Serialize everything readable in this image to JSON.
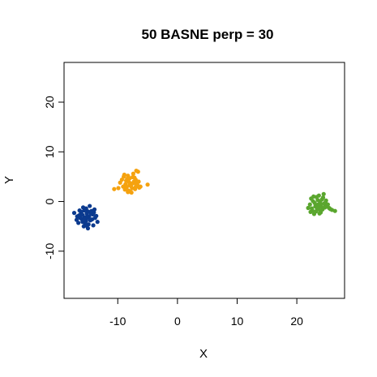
{
  "chart_data": {
    "type": "scatter",
    "title": "50 BASNE perp = 30",
    "xlabel": "X",
    "ylabel": "Y",
    "xlim": [
      -19,
      28
    ],
    "ylim": [
      -19.5,
      28
    ],
    "xticks": [
      -10,
      0,
      10,
      20
    ],
    "yticks": [
      -10,
      0,
      10,
      20
    ],
    "xtick_labels": [
      "-10",
      "0",
      "10",
      "20"
    ],
    "ytick_labels": [
      "-10",
      "0",
      "10",
      "20"
    ],
    "grid": false,
    "legend": "none",
    "series": [
      {
        "color": "#0b3a8f",
        "points": [
          [
            -16.2,
            -2.5
          ],
          [
            -15.6,
            -3.2
          ],
          [
            -15.0,
            -2.0
          ],
          [
            -14.6,
            -3.8
          ],
          [
            -15.9,
            -4.1
          ],
          [
            -14.2,
            -2.6
          ],
          [
            -16.8,
            -3.0
          ],
          [
            -15.3,
            -1.4
          ],
          [
            -13.8,
            -3.3
          ],
          [
            -14.9,
            -4.6
          ],
          [
            -16.4,
            -1.8
          ],
          [
            -15.1,
            -2.9
          ],
          [
            -17.3,
            -2.3
          ],
          [
            -13.4,
            -4.1
          ],
          [
            -14.4,
            -1.9
          ],
          [
            -15.7,
            -5.0
          ],
          [
            -16.0,
            -3.6
          ],
          [
            -14.7,
            -0.9
          ],
          [
            -15.4,
            -3.5
          ],
          [
            -14.0,
            -2.2
          ],
          [
            -16.6,
            -4.3
          ],
          [
            -15.2,
            -2.4
          ],
          [
            -13.6,
            -2.9
          ],
          [
            -15.8,
            -1.2
          ],
          [
            -14.8,
            -3.0
          ],
          [
            -16.1,
            -2.1
          ],
          [
            -15.5,
            -4.4
          ],
          [
            -14.3,
            -3.6
          ],
          [
            -13.9,
            -1.6
          ],
          [
            -16.9,
            -3.7
          ],
          [
            -15.0,
            -5.4
          ],
          [
            -14.5,
            -2.4
          ],
          [
            -15.9,
            -2.7
          ],
          [
            -15.3,
            -3.9
          ],
          [
            -14.1,
            -4.8
          ],
          [
            -16.3,
            -3.3
          ],
          [
            -15.6,
            -1.8
          ],
          [
            -14.9,
            -3.3
          ],
          [
            -15.2,
            -4.9
          ],
          [
            -16.5,
            -2.8
          ]
        ]
      },
      {
        "color": "#f5a20f",
        "points": [
          [
            -8.6,
            4.2
          ],
          [
            -8.0,
            3.3
          ],
          [
            -7.2,
            4.8
          ],
          [
            -9.1,
            3.0
          ],
          [
            -8.3,
            5.2
          ],
          [
            -7.0,
            2.9
          ],
          [
            -6.6,
            6.0
          ],
          [
            -7.6,
            3.6
          ],
          [
            -8.8,
            2.4
          ],
          [
            -9.6,
            3.8
          ],
          [
            -7.9,
            2.0
          ],
          [
            -6.8,
            3.9
          ],
          [
            -8.4,
            4.6
          ],
          [
            -7.4,
            5.6
          ],
          [
            -5.0,
            3.4
          ],
          [
            -9.9,
            2.7
          ],
          [
            -8.1,
            3.9
          ],
          [
            -7.0,
            4.4
          ],
          [
            -6.4,
            2.8
          ],
          [
            -8.9,
            5.4
          ],
          [
            -7.7,
            1.8
          ],
          [
            -7.3,
            4.0
          ],
          [
            -8.5,
            2.9
          ],
          [
            -6.9,
            6.2
          ],
          [
            -9.3,
            4.4
          ],
          [
            -7.8,
            3.1
          ],
          [
            -8.2,
            2.2
          ],
          [
            -6.7,
            3.3
          ],
          [
            -7.5,
            4.9
          ],
          [
            -10.6,
            2.5
          ],
          [
            -8.7,
            3.5
          ],
          [
            -7.1,
            2.5
          ],
          [
            -8.0,
            4.7
          ],
          [
            -6.5,
            4.0
          ],
          [
            -9.0,
            5.0
          ],
          [
            -7.6,
            2.7
          ],
          [
            -8.3,
            1.9
          ],
          [
            -7.2,
            3.7
          ],
          [
            -6.2,
            3.0
          ],
          [
            -8.6,
            3.0
          ]
        ]
      },
      {
        "color": "#5aa62e",
        "points": [
          [
            23.0,
            -0.3
          ],
          [
            23.6,
            -1.2
          ],
          [
            24.2,
            0.4
          ],
          [
            22.6,
            -1.8
          ],
          [
            24.8,
            -0.8
          ],
          [
            23.3,
            0.9
          ],
          [
            25.4,
            -1.3
          ],
          [
            22.2,
            -0.6
          ],
          [
            24.0,
            -2.2
          ],
          [
            23.9,
            -0.1
          ],
          [
            24.5,
            1.5
          ],
          [
            22.9,
            -2.5
          ],
          [
            25.9,
            -1.7
          ],
          [
            23.4,
            -1.5
          ],
          [
            24.6,
            -0.4
          ],
          [
            22.4,
            0.6
          ],
          [
            23.7,
            1.2
          ],
          [
            24.1,
            -1.0
          ],
          [
            21.9,
            -1.3
          ],
          [
            24.9,
            0.2
          ],
          [
            23.1,
            -1.0
          ],
          [
            25.2,
            -0.6
          ],
          [
            23.8,
            -2.4
          ],
          [
            22.7,
            0.1
          ],
          [
            24.3,
            -1.6
          ],
          [
            26.4,
            -1.9
          ],
          [
            23.5,
            0.3
          ],
          [
            24.7,
            -1.2
          ],
          [
            22.5,
            -1.4
          ],
          [
            24.4,
            0.8
          ],
          [
            23.2,
            -2.0
          ],
          [
            25.0,
            -1.0
          ],
          [
            23.6,
            -0.6
          ],
          [
            22.8,
            1.0
          ],
          [
            24.0,
            -0.5
          ],
          [
            25.6,
            -1.5
          ],
          [
            23.9,
            -1.8
          ],
          [
            22.3,
            -2.1
          ],
          [
            24.8,
            -0.2
          ],
          [
            23.4,
            -0.9
          ]
        ]
      }
    ]
  }
}
